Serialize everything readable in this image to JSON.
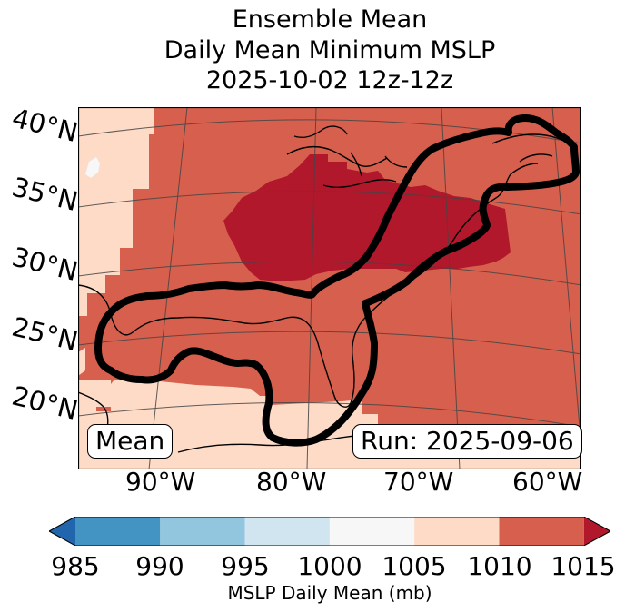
{
  "title": {
    "line1": "Ensemble Mean",
    "line2": "Daily Mean Minimum MSLP",
    "line3": "2025-10-02 12z-12z"
  },
  "map": {
    "lat_labels": [
      "40°N",
      "35°N",
      "30°N",
      "25°N",
      "20°N"
    ],
    "lon_labels": [
      "90°W",
      "80°W",
      "70°W",
      "60°W"
    ],
    "mean_label": "Mean",
    "run_label": "Run: 2025-09-06",
    "region_fills": {
      "ocean_base": "1010-1015",
      "western_band": "1005-1010",
      "caribbean": "1005-1010",
      "interior_high": "above 1015"
    }
  },
  "colorbar": {
    "ticks": [
      "985",
      "990",
      "995",
      "1000",
      "1005",
      "1010",
      "1015"
    ],
    "label": "MSLP Daily Mean (mb)",
    "under_color": "#2166ac",
    "over_color": "#b2182b",
    "segment_colors": [
      "#4393c3",
      "#92c5de",
      "#d1e5f0",
      "#f7f7f7",
      "#fddbc7",
      "#d6604d"
    ]
  },
  "colors": {
    "above_1015": "#b2182b",
    "r1010_1015": "#d6604d",
    "r1005_1010": "#fddbc7",
    "r1000_1005": "#f7f7f7"
  }
}
